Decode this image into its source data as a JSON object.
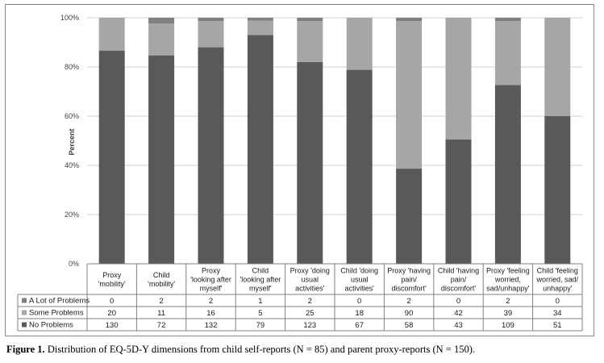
{
  "caption": {
    "label": "Figure 1.",
    "text": " Distribution of EQ-5D-Y  dimensions from child self-reports (N = 85) and parent proxy-reports (N = 150)."
  },
  "chart_data": {
    "type": "bar",
    "stacked": "percent",
    "ylabel": "Percent",
    "ylim": [
      0,
      100
    ],
    "yticks": [
      "0%",
      "20%",
      "40%",
      "60%",
      "80%",
      "100%"
    ],
    "categories": [
      [
        "Proxy",
        "'mobility'"
      ],
      [
        "Child",
        "'mobility'"
      ],
      [
        "Proxy",
        "'looking after",
        "myself'"
      ],
      [
        "Child",
        "'looking after",
        "myself'"
      ],
      [
        "Proxy 'doing",
        "usual",
        "activities'"
      ],
      [
        "Child 'doing",
        "usual",
        "activities'"
      ],
      [
        "Proxy 'having",
        "pain/",
        "discomfort'"
      ],
      [
        "Child 'having",
        "pain/",
        "discomfort'"
      ],
      [
        "Proxy 'feeling",
        "worried,",
        "sad/unhappy'"
      ],
      [
        "Child 'feeling",
        "worried, sad/",
        "unhappy'"
      ]
    ],
    "series": [
      {
        "name": "A Lot of Problems",
        "color": "#808080",
        "values": [
          0,
          2,
          2,
          1,
          2,
          0,
          2,
          0,
          2,
          0
        ]
      },
      {
        "name": "Some Problems",
        "color": "#a6a6a6",
        "values": [
          20,
          11,
          16,
          5,
          25,
          18,
          90,
          42,
          39,
          34
        ]
      },
      {
        "name": "No Problems",
        "color": "#595959",
        "values": [
          130,
          72,
          132,
          79,
          123,
          67,
          58,
          43,
          109,
          51
        ]
      }
    ],
    "data_table": true,
    "legend": "data-table-keys"
  }
}
